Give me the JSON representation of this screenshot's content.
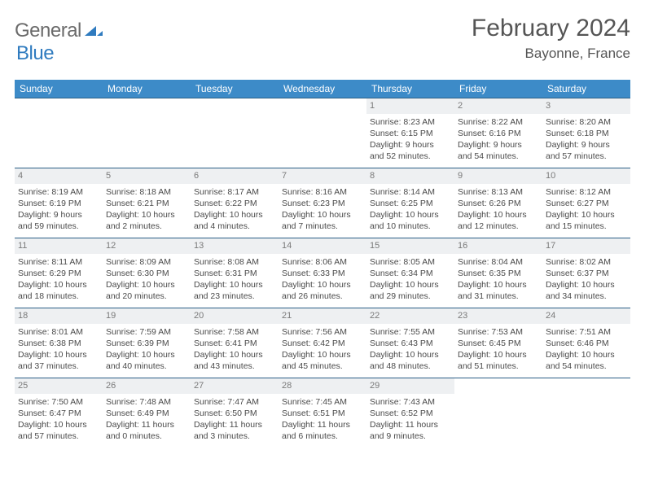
{
  "brand": {
    "general": "General",
    "blue": "Blue"
  },
  "title": {
    "month": "February 2024",
    "location": "Bayonne, France"
  },
  "colors": {
    "header_bg": "#3d8bc8",
    "header_text": "#ffffff",
    "row_border": "#2b5f86",
    "daynum_bg": "#eef0f2",
    "daynum_text": "#7a7a7a",
    "body_text": "#4a4a4a",
    "logo_gray": "#6b6b6b",
    "logo_blue": "#2f7bbf"
  },
  "weekdays": [
    "Sunday",
    "Monday",
    "Tuesday",
    "Wednesday",
    "Thursday",
    "Friday",
    "Saturday"
  ],
  "weeks": [
    [
      {
        "blank": true
      },
      {
        "blank": true
      },
      {
        "blank": true
      },
      {
        "blank": true
      },
      {
        "day": "1",
        "sunrise": "Sunrise: 8:23 AM",
        "sunset": "Sunset: 6:15 PM",
        "daylight1": "Daylight: 9 hours",
        "daylight2": "and 52 minutes."
      },
      {
        "day": "2",
        "sunrise": "Sunrise: 8:22 AM",
        "sunset": "Sunset: 6:16 PM",
        "daylight1": "Daylight: 9 hours",
        "daylight2": "and 54 minutes."
      },
      {
        "day": "3",
        "sunrise": "Sunrise: 8:20 AM",
        "sunset": "Sunset: 6:18 PM",
        "daylight1": "Daylight: 9 hours",
        "daylight2": "and 57 minutes."
      }
    ],
    [
      {
        "day": "4",
        "sunrise": "Sunrise: 8:19 AM",
        "sunset": "Sunset: 6:19 PM",
        "daylight1": "Daylight: 9 hours",
        "daylight2": "and 59 minutes."
      },
      {
        "day": "5",
        "sunrise": "Sunrise: 8:18 AM",
        "sunset": "Sunset: 6:21 PM",
        "daylight1": "Daylight: 10 hours",
        "daylight2": "and 2 minutes."
      },
      {
        "day": "6",
        "sunrise": "Sunrise: 8:17 AM",
        "sunset": "Sunset: 6:22 PM",
        "daylight1": "Daylight: 10 hours",
        "daylight2": "and 4 minutes."
      },
      {
        "day": "7",
        "sunrise": "Sunrise: 8:16 AM",
        "sunset": "Sunset: 6:23 PM",
        "daylight1": "Daylight: 10 hours",
        "daylight2": "and 7 minutes."
      },
      {
        "day": "8",
        "sunrise": "Sunrise: 8:14 AM",
        "sunset": "Sunset: 6:25 PM",
        "daylight1": "Daylight: 10 hours",
        "daylight2": "and 10 minutes."
      },
      {
        "day": "9",
        "sunrise": "Sunrise: 8:13 AM",
        "sunset": "Sunset: 6:26 PM",
        "daylight1": "Daylight: 10 hours",
        "daylight2": "and 12 minutes."
      },
      {
        "day": "10",
        "sunrise": "Sunrise: 8:12 AM",
        "sunset": "Sunset: 6:27 PM",
        "daylight1": "Daylight: 10 hours",
        "daylight2": "and 15 minutes."
      }
    ],
    [
      {
        "day": "11",
        "sunrise": "Sunrise: 8:11 AM",
        "sunset": "Sunset: 6:29 PM",
        "daylight1": "Daylight: 10 hours",
        "daylight2": "and 18 minutes."
      },
      {
        "day": "12",
        "sunrise": "Sunrise: 8:09 AM",
        "sunset": "Sunset: 6:30 PM",
        "daylight1": "Daylight: 10 hours",
        "daylight2": "and 20 minutes."
      },
      {
        "day": "13",
        "sunrise": "Sunrise: 8:08 AM",
        "sunset": "Sunset: 6:31 PM",
        "daylight1": "Daylight: 10 hours",
        "daylight2": "and 23 minutes."
      },
      {
        "day": "14",
        "sunrise": "Sunrise: 8:06 AM",
        "sunset": "Sunset: 6:33 PM",
        "daylight1": "Daylight: 10 hours",
        "daylight2": "and 26 minutes."
      },
      {
        "day": "15",
        "sunrise": "Sunrise: 8:05 AM",
        "sunset": "Sunset: 6:34 PM",
        "daylight1": "Daylight: 10 hours",
        "daylight2": "and 29 minutes."
      },
      {
        "day": "16",
        "sunrise": "Sunrise: 8:04 AM",
        "sunset": "Sunset: 6:35 PM",
        "daylight1": "Daylight: 10 hours",
        "daylight2": "and 31 minutes."
      },
      {
        "day": "17",
        "sunrise": "Sunrise: 8:02 AM",
        "sunset": "Sunset: 6:37 PM",
        "daylight1": "Daylight: 10 hours",
        "daylight2": "and 34 minutes."
      }
    ],
    [
      {
        "day": "18",
        "sunrise": "Sunrise: 8:01 AM",
        "sunset": "Sunset: 6:38 PM",
        "daylight1": "Daylight: 10 hours",
        "daylight2": "and 37 minutes."
      },
      {
        "day": "19",
        "sunrise": "Sunrise: 7:59 AM",
        "sunset": "Sunset: 6:39 PM",
        "daylight1": "Daylight: 10 hours",
        "daylight2": "and 40 minutes."
      },
      {
        "day": "20",
        "sunrise": "Sunrise: 7:58 AM",
        "sunset": "Sunset: 6:41 PM",
        "daylight1": "Daylight: 10 hours",
        "daylight2": "and 43 minutes."
      },
      {
        "day": "21",
        "sunrise": "Sunrise: 7:56 AM",
        "sunset": "Sunset: 6:42 PM",
        "daylight1": "Daylight: 10 hours",
        "daylight2": "and 45 minutes."
      },
      {
        "day": "22",
        "sunrise": "Sunrise: 7:55 AM",
        "sunset": "Sunset: 6:43 PM",
        "daylight1": "Daylight: 10 hours",
        "daylight2": "and 48 minutes."
      },
      {
        "day": "23",
        "sunrise": "Sunrise: 7:53 AM",
        "sunset": "Sunset: 6:45 PM",
        "daylight1": "Daylight: 10 hours",
        "daylight2": "and 51 minutes."
      },
      {
        "day": "24",
        "sunrise": "Sunrise: 7:51 AM",
        "sunset": "Sunset: 6:46 PM",
        "daylight1": "Daylight: 10 hours",
        "daylight2": "and 54 minutes."
      }
    ],
    [
      {
        "day": "25",
        "sunrise": "Sunrise: 7:50 AM",
        "sunset": "Sunset: 6:47 PM",
        "daylight1": "Daylight: 10 hours",
        "daylight2": "and 57 minutes."
      },
      {
        "day": "26",
        "sunrise": "Sunrise: 7:48 AM",
        "sunset": "Sunset: 6:49 PM",
        "daylight1": "Daylight: 11 hours",
        "daylight2": "and 0 minutes."
      },
      {
        "day": "27",
        "sunrise": "Sunrise: 7:47 AM",
        "sunset": "Sunset: 6:50 PM",
        "daylight1": "Daylight: 11 hours",
        "daylight2": "and 3 minutes."
      },
      {
        "day": "28",
        "sunrise": "Sunrise: 7:45 AM",
        "sunset": "Sunset: 6:51 PM",
        "daylight1": "Daylight: 11 hours",
        "daylight2": "and 6 minutes."
      },
      {
        "day": "29",
        "sunrise": "Sunrise: 7:43 AM",
        "sunset": "Sunset: 6:52 PM",
        "daylight1": "Daylight: 11 hours",
        "daylight2": "and 9 minutes."
      },
      {
        "blank": true
      },
      {
        "blank": true
      }
    ]
  ]
}
